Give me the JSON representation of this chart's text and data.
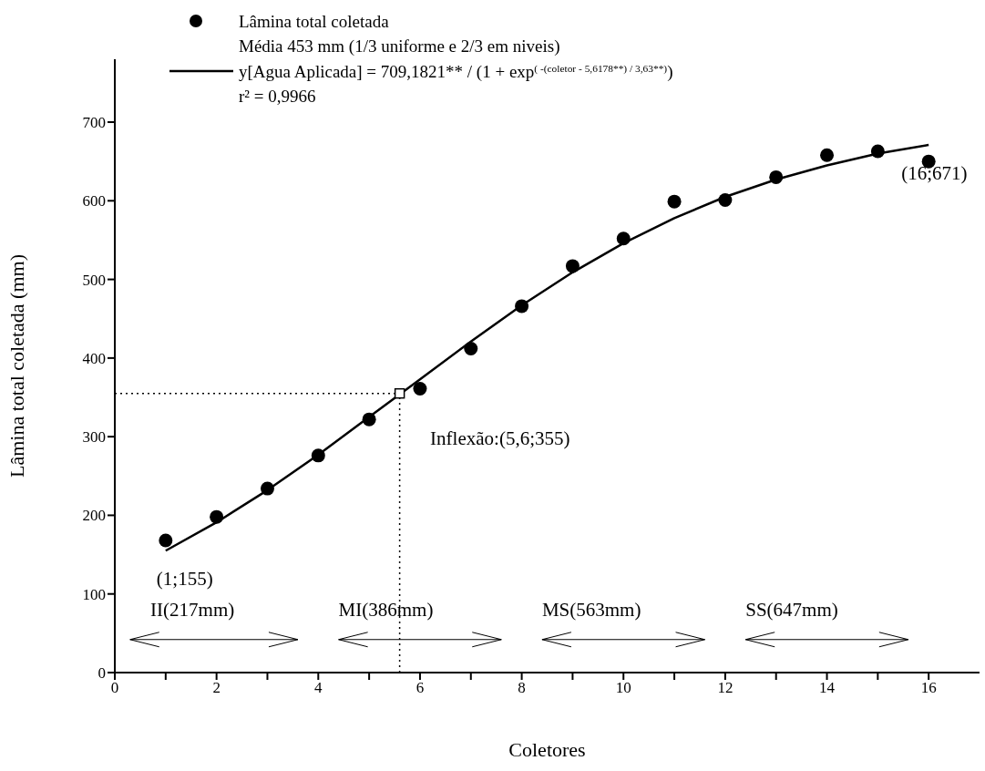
{
  "chart_data": {
    "type": "scatter",
    "xlabel": "Coletores",
    "ylabel": "Lâmina total coletada (mm)",
    "xlim": [
      0,
      17
    ],
    "xticks": [
      0,
      {
        "value": 1,
        "label": null
      },
      2,
      {
        "value": 3,
        "label": null
      },
      4,
      {
        "value": 5,
        "label": null
      },
      6,
      {
        "value": 7,
        "label": null
      },
      8,
      {
        "value": 9,
        "label": null
      },
      10,
      {
        "value": 11,
        "label": null
      },
      12,
      {
        "value": 13,
        "label": null
      },
      14,
      {
        "value": 15,
        "label": null
      },
      16
    ],
    "ylim": [
      0,
      780
    ],
    "yticks": [
      0,
      100,
      200,
      300,
      400,
      500,
      600,
      700
    ],
    "legend": "top left",
    "series": [
      {
        "name": "Lâmina total coletada",
        "marker": "circle",
        "color": "#000000",
        "x": [
          1,
          2,
          3,
          4,
          5,
          6,
          7,
          8,
          9,
          10,
          11,
          12,
          13,
          14,
          15,
          16
        ],
        "values": [
          168,
          198,
          234,
          276,
          322,
          361,
          412,
          466,
          517,
          552,
          599,
          601,
          630,
          658,
          663,
          650
        ]
      },
      {
        "name": "y[Agua Aplicada] = 709,1821** / (1 + exp$^{( -(coletor - 5,6178**) / 3,63**)}$)",
        "type": "line",
        "marker": "none",
        "line_style": "solid",
        "color": "#000000",
        "x": [
          1,
          2,
          3,
          4,
          5,
          6,
          7,
          8,
          9,
          10,
          11,
          12,
          13,
          14,
          15,
          16
        ],
        "values": [
          155,
          191,
          232,
          277,
          325,
          373,
          421,
          467,
          509,
          546,
          578,
          605,
          627,
          645,
          660,
          671
        ]
      },
      {
        "marker": "square",
        "color": "#000000",
        "x": [
          5.6
        ],
        "values": [
          355
        ]
      }
    ],
    "ref_lines": [
      {
        "axis": "y",
        "value": 355,
        "line_style": "dotted",
        "color": "#000000"
      },
      {
        "axis": "x",
        "value": 5.6,
        "line_style": "dotted",
        "color": "#000000"
      }
    ],
    "annotations": [
      "Média 453 mm (1/3 uniforme e 2/3 em niveis)",
      "r² = 0,9966",
      "II(217mm)",
      "MI(386mm)",
      "MS(563mm)",
      "SS(647mm)",
      "Inflexão:(5,6;355)",
      {
        "text": "(1;155)",
        "x": 1,
        "y": 155
      },
      {
        "text": "(16;671)",
        "x": 16,
        "y": 671
      }
    ]
  }
}
